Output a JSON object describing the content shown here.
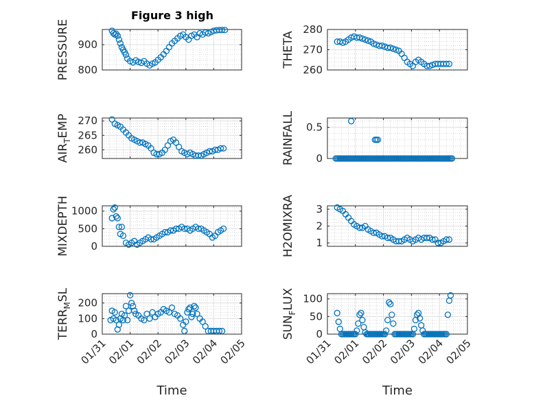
{
  "figure_title": "Figure 3 high",
  "x_axis": {
    "label": "Time",
    "tick_labels": [
      "01/31",
      "02/01",
      "02/02",
      "02/03",
      "02/04",
      "02/05"
    ],
    "range_days": [
      0,
      5
    ]
  },
  "colors": {
    "marker": "#0072bd",
    "axes": "#262626",
    "grid": "#dfdfdf"
  },
  "chart_data": [
    {
      "type": "scatter",
      "ylabel": "PRESSURE",
      "ylim": [
        800,
        960
      ],
      "yticks": [
        800,
        900
      ],
      "grid": true,
      "x": [
        0.35,
        0.4,
        0.45,
        0.5,
        0.55,
        0.6,
        0.65,
        0.7,
        0.75,
        0.8,
        0.85,
        0.9,
        1.0,
        1.1,
        1.2,
        1.3,
        1.4,
        1.5,
        1.6,
        1.7,
        1.8,
        1.9,
        2.0,
        2.1,
        2.2,
        2.3,
        2.4,
        2.5,
        2.6,
        2.7,
        2.8,
        2.9,
        3.0,
        3.1,
        3.2,
        3.3,
        3.4,
        3.5,
        3.6,
        3.7,
        3.8,
        3.9,
        4.0,
        4.1,
        4.2,
        4.3,
        4.4
      ],
      "values": [
        955,
        945,
        940,
        943,
        935,
        920,
        905,
        890,
        880,
        870,
        860,
        845,
        835,
        830,
        838,
        832,
        828,
        835,
        825,
        818,
        825,
        830,
        840,
        850,
        862,
        875,
        890,
        905,
        915,
        925,
        935,
        940,
        930,
        920,
        935,
        940,
        930,
        945,
        940,
        948,
        945,
        950,
        955,
        957,
        958,
        958,
        958
      ]
    },
    {
      "type": "scatter",
      "ylabel": "THETA",
      "ylim": [
        260,
        280
      ],
      "yticks": [
        260,
        270,
        280
      ],
      "grid": true,
      "x": [
        0.35,
        0.45,
        0.55,
        0.65,
        0.75,
        0.85,
        0.95,
        1.05,
        1.15,
        1.25,
        1.35,
        1.45,
        1.55,
        1.65,
        1.75,
        1.85,
        1.95,
        2.05,
        2.15,
        2.25,
        2.35,
        2.45,
        2.55,
        2.65,
        2.75,
        2.85,
        2.95,
        3.05,
        3.15,
        3.25,
        3.35,
        3.45,
        3.55,
        3.65,
        3.75,
        3.85,
        3.95,
        4.05,
        4.15,
        4.25,
        4.35
      ],
      "values": [
        274,
        274,
        273.5,
        274,
        275,
        276,
        276.5,
        276,
        276,
        275.5,
        275,
        274.5,
        274,
        273,
        272.5,
        272,
        272,
        271.5,
        271,
        271,
        270.5,
        270,
        269.5,
        268,
        266,
        264,
        263,
        262,
        264,
        265,
        264,
        263,
        262,
        262,
        262.5,
        263,
        263,
        263,
        263,
        263,
        263
      ]
    },
    {
      "type": "scatter",
      "ylabel": "AIR_TEMP",
      "ylim": [
        257,
        271
      ],
      "yticks": [
        260,
        265,
        270
      ],
      "grid": true,
      "x": [
        0.35,
        0.45,
        0.55,
        0.65,
        0.75,
        0.85,
        0.95,
        1.05,
        1.15,
        1.25,
        1.35,
        1.45,
        1.55,
        1.65,
        1.75,
        1.85,
        1.95,
        2.05,
        2.15,
        2.25,
        2.35,
        2.45,
        2.55,
        2.65,
        2.75,
        2.85,
        2.95,
        3.05,
        3.15,
        3.25,
        3.35,
        3.45,
        3.55,
        3.65,
        3.75,
        3.85,
        3.95,
        4.05,
        4.15,
        4.25,
        4.35
      ],
      "values": [
        270.5,
        269,
        268.5,
        268,
        267,
        266,
        265,
        264,
        263.5,
        263,
        262.5,
        262.5,
        262,
        261.5,
        260.5,
        259,
        258.5,
        258.5,
        259,
        260,
        261.5,
        263,
        263.5,
        262.5,
        261,
        259.5,
        259,
        258.5,
        259,
        258.5,
        258,
        258,
        258,
        258.5,
        259,
        259.5,
        259.5,
        260,
        260,
        260.5,
        260.5
      ]
    },
    {
      "type": "scatter",
      "ylabel": "RAINFALL",
      "ylim": [
        0,
        0.65
      ],
      "yticks": [
        0,
        0.5
      ],
      "grid": true,
      "x": [
        0.3,
        0.35,
        0.4,
        0.45,
        0.5,
        0.55,
        0.6,
        0.65,
        0.7,
        0.75,
        0.8,
        0.85,
        0.9,
        0.95,
        1.0,
        1.05,
        1.1,
        1.15,
        1.2,
        1.25,
        1.3,
        1.35,
        1.4,
        1.45,
        1.5,
        1.55,
        1.6,
        1.65,
        1.7,
        1.75,
        1.8,
        1.85,
        1.9,
        1.95,
        2.0,
        2.05,
        2.1,
        2.15,
        2.2,
        2.25,
        2.3,
        2.35,
        2.4,
        2.45,
        2.5,
        2.55,
        2.6,
        2.65,
        2.7,
        2.75,
        2.8,
        2.85,
        2.9,
        2.95,
        3.0,
        3.05,
        3.1,
        3.15,
        3.2,
        3.25,
        3.3,
        3.35,
        3.4,
        3.45,
        3.5,
        3.55,
        3.6,
        3.65,
        3.7,
        3.75,
        3.8,
        3.85,
        3.9,
        3.95,
        4.0,
        4.05,
        4.1,
        4.15,
        4.2,
        4.25,
        4.3,
        4.35,
        4.4,
        4.45,
        0.85,
        1.7,
        1.75,
        1.8
      ],
      "values": [
        0,
        0,
        0,
        0,
        0,
        0,
        0,
        0,
        0,
        0,
        0,
        0,
        0,
        0,
        0,
        0,
        0,
        0,
        0,
        0,
        0,
        0,
        0,
        0,
        0,
        0,
        0,
        0,
        0,
        0,
        0,
        0,
        0,
        0,
        0,
        0,
        0,
        0,
        0,
        0,
        0,
        0,
        0,
        0,
        0,
        0,
        0,
        0,
        0,
        0,
        0,
        0,
        0,
        0,
        0,
        0,
        0,
        0,
        0,
        0,
        0,
        0,
        0,
        0,
        0,
        0,
        0,
        0,
        0,
        0,
        0,
        0,
        0,
        0,
        0,
        0,
        0,
        0,
        0,
        0,
        0,
        0,
        0,
        0,
        0.6,
        0.3,
        0.3,
        0.3
      ]
    },
    {
      "type": "scatter",
      "ylabel": "MIXDEPTH",
      "ylim": [
        0,
        1150
      ],
      "yticks": [
        0,
        500,
        1000
      ],
      "grid": true,
      "x": [
        0.35,
        0.4,
        0.45,
        0.5,
        0.55,
        0.6,
        0.65,
        0.7,
        0.75,
        0.85,
        0.95,
        1.05,
        1.15,
        1.25,
        1.35,
        1.45,
        1.55,
        1.65,
        1.75,
        1.85,
        1.95,
        2.05,
        2.15,
        2.25,
        2.35,
        2.45,
        2.55,
        2.65,
        2.75,
        2.85,
        2.95,
        3.05,
        3.15,
        3.25,
        3.35,
        3.45,
        3.55,
        3.65,
        3.75,
        3.85,
        3.95,
        4.05,
        4.15,
        4.25,
        4.35
      ],
      "values": [
        800,
        1050,
        1100,
        850,
        800,
        550,
        350,
        550,
        300,
        100,
        50,
        100,
        150,
        50,
        100,
        150,
        200,
        250,
        200,
        200,
        250,
        300,
        350,
        400,
        400,
        450,
        450,
        500,
        500,
        550,
        500,
        500,
        450,
        500,
        550,
        500,
        500,
        450,
        400,
        350,
        250,
        300,
        400,
        450,
        500
      ]
    },
    {
      "type": "scatter",
      "ylabel": "H2OMIXRA",
      "ylim": [
        0.8,
        3.2
      ],
      "yticks": [
        1,
        2,
        3
      ],
      "grid": true,
      "x": [
        0.35,
        0.45,
        0.55,
        0.65,
        0.75,
        0.85,
        0.95,
        1.05,
        1.15,
        1.25,
        1.35,
        1.45,
        1.55,
        1.65,
        1.75,
        1.85,
        1.95,
        2.05,
        2.15,
        2.25,
        2.35,
        2.45,
        2.55,
        2.65,
        2.75,
        2.85,
        2.95,
        3.05,
        3.15,
        3.25,
        3.35,
        3.45,
        3.55,
        3.65,
        3.75,
        3.85,
        3.95,
        4.05,
        4.15,
        4.25,
        4.35
      ],
      "values": [
        3.1,
        3.0,
        2.9,
        2.7,
        2.5,
        2.3,
        2.1,
        2.0,
        1.9,
        1.9,
        2.0,
        1.8,
        1.7,
        1.6,
        1.6,
        1.5,
        1.4,
        1.4,
        1.3,
        1.3,
        1.2,
        1.1,
        1.1,
        1.1,
        1.2,
        1.3,
        1.2,
        1.1,
        1.2,
        1.3,
        1.2,
        1.3,
        1.3,
        1.3,
        1.2,
        1.2,
        1.0,
        1.0,
        1.1,
        1.2,
        1.2
      ]
    },
    {
      "type": "scatter",
      "ylabel": "TERR_MSL",
      "ylim": [
        0,
        260
      ],
      "yticks": [
        0,
        100,
        200
      ],
      "grid": true,
      "x": [
        0.3,
        0.35,
        0.4,
        0.45,
        0.5,
        0.55,
        0.6,
        0.65,
        0.7,
        0.75,
        0.8,
        0.85,
        0.9,
        0.95,
        1.0,
        1.05,
        1.1,
        1.15,
        1.2,
        1.3,
        1.4,
        1.5,
        1.6,
        1.7,
        1.8,
        1.9,
        2.0,
        2.1,
        2.2,
        2.3,
        2.4,
        2.5,
        2.6,
        2.7,
        2.8,
        2.9,
        2.95,
        3.0,
        3.05,
        3.1,
        3.15,
        3.2,
        3.25,
        3.3,
        3.35,
        3.4,
        3.5,
        3.6,
        3.7,
        3.8,
        3.9,
        4.0,
        4.1,
        4.2,
        4.3
      ],
      "values": [
        90,
        150,
        100,
        140,
        90,
        30,
        60,
        100,
        130,
        90,
        120,
        180,
        90,
        150,
        250,
        200,
        180,
        150,
        130,
        120,
        100,
        90,
        130,
        100,
        140,
        110,
        130,
        140,
        160,
        150,
        140,
        170,
        130,
        120,
        100,
        60,
        20,
        80,
        140,
        160,
        170,
        110,
        130,
        180,
        170,
        130,
        100,
        80,
        50,
        20,
        20,
        20,
        20,
        20,
        20
      ]
    },
    {
      "type": "scatter",
      "ylabel": "SUN_FLUX",
      "ylim": [
        0,
        115
      ],
      "yticks": [
        0,
        50,
        100
      ],
      "grid": true,
      "x": [
        0.35,
        0.4,
        0.45,
        0.5,
        0.55,
        0.6,
        0.65,
        0.7,
        0.75,
        0.8,
        0.85,
        0.9,
        0.95,
        1.0,
        1.05,
        1.1,
        1.15,
        1.2,
        1.25,
        1.3,
        1.35,
        1.4,
        1.45,
        1.5,
        1.55,
        1.6,
        1.65,
        1.7,
        1.75,
        1.8,
        1.85,
        1.9,
        1.95,
        2.0,
        2.05,
        2.1,
        2.15,
        2.2,
        2.25,
        2.3,
        2.35,
        2.4,
        2.45,
        2.5,
        2.55,
        2.6,
        2.65,
        2.7,
        2.75,
        2.8,
        2.85,
        2.9,
        2.95,
        3.0,
        3.05,
        3.1,
        3.15,
        3.2,
        3.25,
        3.3,
        3.35,
        3.4,
        3.45,
        3.5,
        3.55,
        3.6,
        3.65,
        3.7,
        3.75,
        3.8,
        3.85,
        3.9,
        3.95,
        4.0,
        4.05,
        4.1,
        4.15,
        4.2,
        4.25,
        4.3,
        4.35,
        4.4
      ],
      "values": [
        60,
        35,
        15,
        0,
        0,
        0,
        0,
        0,
        0,
        0,
        0,
        0,
        0,
        0,
        10,
        30,
        55,
        60,
        40,
        20,
        5,
        0,
        0,
        0,
        0,
        0,
        0,
        0,
        0,
        0,
        0,
        0,
        0,
        0,
        0,
        10,
        40,
        90,
        85,
        55,
        30,
        0,
        0,
        0,
        0,
        0,
        0,
        0,
        0,
        0,
        0,
        0,
        0,
        0,
        0,
        15,
        40,
        55,
        60,
        45,
        25,
        10,
        0,
        0,
        0,
        0,
        0,
        0,
        0,
        0,
        0,
        0,
        0,
        0,
        0,
        0,
        0,
        0,
        0,
        55,
        95,
        110
      ]
    }
  ]
}
